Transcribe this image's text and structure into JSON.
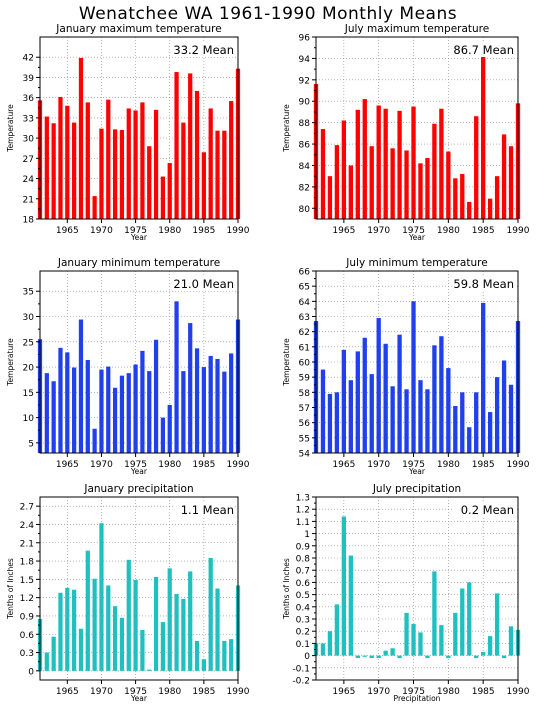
{
  "title": "Wenatchee WA    1961-1990 Monthly Means",
  "colors": {
    "red": "#ff0000",
    "blue": "#2040ee",
    "teal": "#20c0c0"
  },
  "chart_data": [
    {
      "type": "bar",
      "title": "January maximum temperature",
      "mean_label": "33.2 Mean",
      "ylabel": "Temperature",
      "xlabel": "Year",
      "color": "#ff0000",
      "ylim": [
        18,
        45
      ],
      "yticks": [
        "18",
        "21",
        "24",
        "27",
        "30",
        "33",
        "36",
        "39",
        "42"
      ],
      "xticks": [
        "1965",
        "1970",
        "1975",
        "1980",
        "1985",
        "1990"
      ],
      "categories": [
        1961,
        1962,
        1963,
        1964,
        1965,
        1966,
        1967,
        1968,
        1969,
        1970,
        1971,
        1972,
        1973,
        1974,
        1975,
        1976,
        1977,
        1978,
        1979,
        1980,
        1981,
        1982,
        1983,
        1984,
        1985,
        1986,
        1987,
        1988,
        1989,
        1990
      ],
      "values": [
        35.6,
        33.2,
        32.2,
        36.1,
        34.8,
        32.3,
        41.9,
        35.3,
        21.4,
        31.4,
        35.7,
        31.3,
        31.2,
        34.4,
        34.1,
        35.3,
        28.8,
        34.2,
        24.3,
        26.3,
        39.8,
        32.3,
        39.6,
        37.0,
        27.9,
        34.4,
        31.1,
        31.1,
        35.5,
        40.3
      ]
    },
    {
      "type": "bar",
      "title": "July maximum temperature",
      "mean_label": "86.7 Mean",
      "ylabel": "Temperature",
      "xlabel": "Year",
      "color": "#ff0000",
      "ylim": [
        79,
        96
      ],
      "yticks": [
        "80",
        "82",
        "84",
        "86",
        "88",
        "90",
        "92",
        "94",
        "96"
      ],
      "xticks": [
        "1965",
        "1970",
        "1975",
        "1980",
        "1985",
        "1990"
      ],
      "categories": [
        1961,
        1962,
        1963,
        1964,
        1965,
        1966,
        1967,
        1968,
        1969,
        1970,
        1971,
        1972,
        1973,
        1974,
        1975,
        1976,
        1977,
        1978,
        1979,
        1980,
        1981,
        1982,
        1983,
        1984,
        1985,
        1986,
        1987,
        1988,
        1989,
        1990
      ],
      "values": [
        91.6,
        87.4,
        83.0,
        85.9,
        88.2,
        84.0,
        89.2,
        90.2,
        85.8,
        89.6,
        89.3,
        85.6,
        89.1,
        85.4,
        89.5,
        84.2,
        84.7,
        87.9,
        89.3,
        85.3,
        82.8,
        83.2,
        80.6,
        88.6,
        94.8,
        80.9,
        83.0,
        86.9,
        85.8,
        89.8
      ]
    },
    {
      "type": "bar",
      "title": "January minimum temperature",
      "mean_label": "21.0 Mean",
      "ylabel": "Temperature",
      "xlabel": "Year",
      "color": "#2040ee",
      "ylim": [
        3,
        39
      ],
      "yticks": [
        "5",
        "10",
        "15",
        "20",
        "25",
        "30",
        "35"
      ],
      "xticks": [
        "1965",
        "1970",
        "1975",
        "1980",
        "1985",
        "1990"
      ],
      "categories": [
        1961,
        1962,
        1963,
        1964,
        1965,
        1966,
        1967,
        1968,
        1969,
        1970,
        1971,
        1972,
        1973,
        1974,
        1975,
        1976,
        1977,
        1978,
        1979,
        1980,
        1981,
        1982,
        1983,
        1984,
        1985,
        1986,
        1987,
        1988,
        1989,
        1990
      ],
      "values": [
        25.5,
        18.8,
        17.2,
        23.8,
        22.9,
        19.9,
        29.4,
        21.4,
        7.8,
        19.5,
        20.1,
        15.9,
        18.3,
        18.8,
        20.5,
        23.2,
        19.2,
        25.4,
        10.0,
        12.5,
        33.0,
        19.2,
        28.7,
        23.7,
        20.0,
        22.2,
        21.6,
        19.1,
        22.7,
        29.4
      ]
    },
    {
      "type": "bar",
      "title": "July minimum temperature",
      "mean_label": "59.8 Mean",
      "ylabel": "Temperature",
      "xlabel": "Year",
      "color": "#2040ee",
      "ylim": [
        54,
        66
      ],
      "yticks": [
        "54",
        "55",
        "56",
        "57",
        "58",
        "59",
        "60",
        "61",
        "62",
        "63",
        "64",
        "65",
        "66"
      ],
      "xticks": [
        "1965",
        "1970",
        "1975",
        "1980",
        "1985",
        "1990"
      ],
      "categories": [
        1961,
        1962,
        1963,
        1964,
        1965,
        1966,
        1967,
        1968,
        1969,
        1970,
        1971,
        1972,
        1973,
        1974,
        1975,
        1976,
        1977,
        1978,
        1979,
        1980,
        1981,
        1982,
        1983,
        1984,
        1985,
        1986,
        1987,
        1988,
        1989,
        1990
      ],
      "values": [
        62.7,
        59.5,
        57.9,
        58.0,
        60.8,
        58.8,
        60.7,
        61.6,
        59.2,
        62.9,
        61.2,
        58.4,
        61.8,
        58.2,
        64.0,
        58.8,
        58.2,
        61.1,
        61.7,
        59.6,
        57.1,
        58.0,
        55.7,
        58.0,
        63.9,
        56.7,
        59.0,
        60.1,
        58.5,
        62.7
      ]
    },
    {
      "type": "bar",
      "title": "January precipitation",
      "mean_label": "1.1  Mean",
      "ylabel": "Tenths of Inches",
      "xlabel": "Year",
      "color": "#20c0c0",
      "ylim": [
        -0.15,
        2.85
      ],
      "yticks": [
        "0",
        "0.3",
        "0.6",
        "0.9",
        "1.2",
        "1.5",
        "1.8",
        "2.1",
        "2.4",
        "2.7"
      ],
      "xticks": [
        "1965",
        "1970",
        "1975",
        "1980",
        "1985",
        "1990"
      ],
      "categories": [
        1961,
        1962,
        1963,
        1964,
        1965,
        1966,
        1967,
        1968,
        1969,
        1970,
        1971,
        1972,
        1973,
        1974,
        1975,
        1976,
        1977,
        1978,
        1979,
        1980,
        1981,
        1982,
        1983,
        1984,
        1985,
        1986,
        1987,
        1988,
        1989,
        1990
      ],
      "values": [
        0.85,
        0.3,
        0.56,
        1.28,
        1.36,
        1.33,
        0.69,
        1.97,
        1.51,
        2.42,
        1.4,
        1.06,
        0.87,
        1.82,
        1.49,
        0.67,
        0.02,
        1.54,
        0.8,
        1.68,
        1.26,
        1.18,
        1.63,
        0.49,
        0.19,
        1.85,
        1.35,
        0.49,
        0.52,
        1.4
      ]
    },
    {
      "type": "bar",
      "title": "July precipitation",
      "mean_label": "0.2  Mean",
      "ylabel": "Tenths of Inches",
      "xlabel": "Precipitation",
      "color": "#20c0c0",
      "ylim": [
        -0.2,
        1.3
      ],
      "yticks": [
        "-0.2",
        "-0.1",
        "0",
        "0.1",
        "0.2",
        "0.3",
        "0.4",
        "0.5",
        "0.6",
        "0.7",
        "0.8",
        "0.9",
        "1",
        "1.1",
        "1.2",
        "1.3"
      ],
      "xticks": [
        "1965",
        "1970",
        "1975",
        "1980",
        "1985",
        "1990"
      ],
      "categories": [
        1961,
        1962,
        1963,
        1964,
        1965,
        1966,
        1967,
        1968,
        1969,
        1970,
        1971,
        1972,
        1973,
        1974,
        1975,
        1976,
        1977,
        1978,
        1979,
        1980,
        1981,
        1982,
        1983,
        1984,
        1985,
        1986,
        1987,
        1988,
        1989,
        1990
      ],
      "values": [
        0.1,
        0.1,
        0.2,
        0.42,
        1.14,
        0.82,
        -0.02,
        -0.01,
        -0.02,
        -0.02,
        0.04,
        0.06,
        -0.02,
        0.35,
        0.26,
        0.19,
        -0.02,
        0.69,
        0.25,
        -0.02,
        0.35,
        0.55,
        0.6,
        -0.02,
        0.03,
        0.16,
        0.51,
        -0.02,
        0.24,
        0.21
      ]
    }
  ]
}
